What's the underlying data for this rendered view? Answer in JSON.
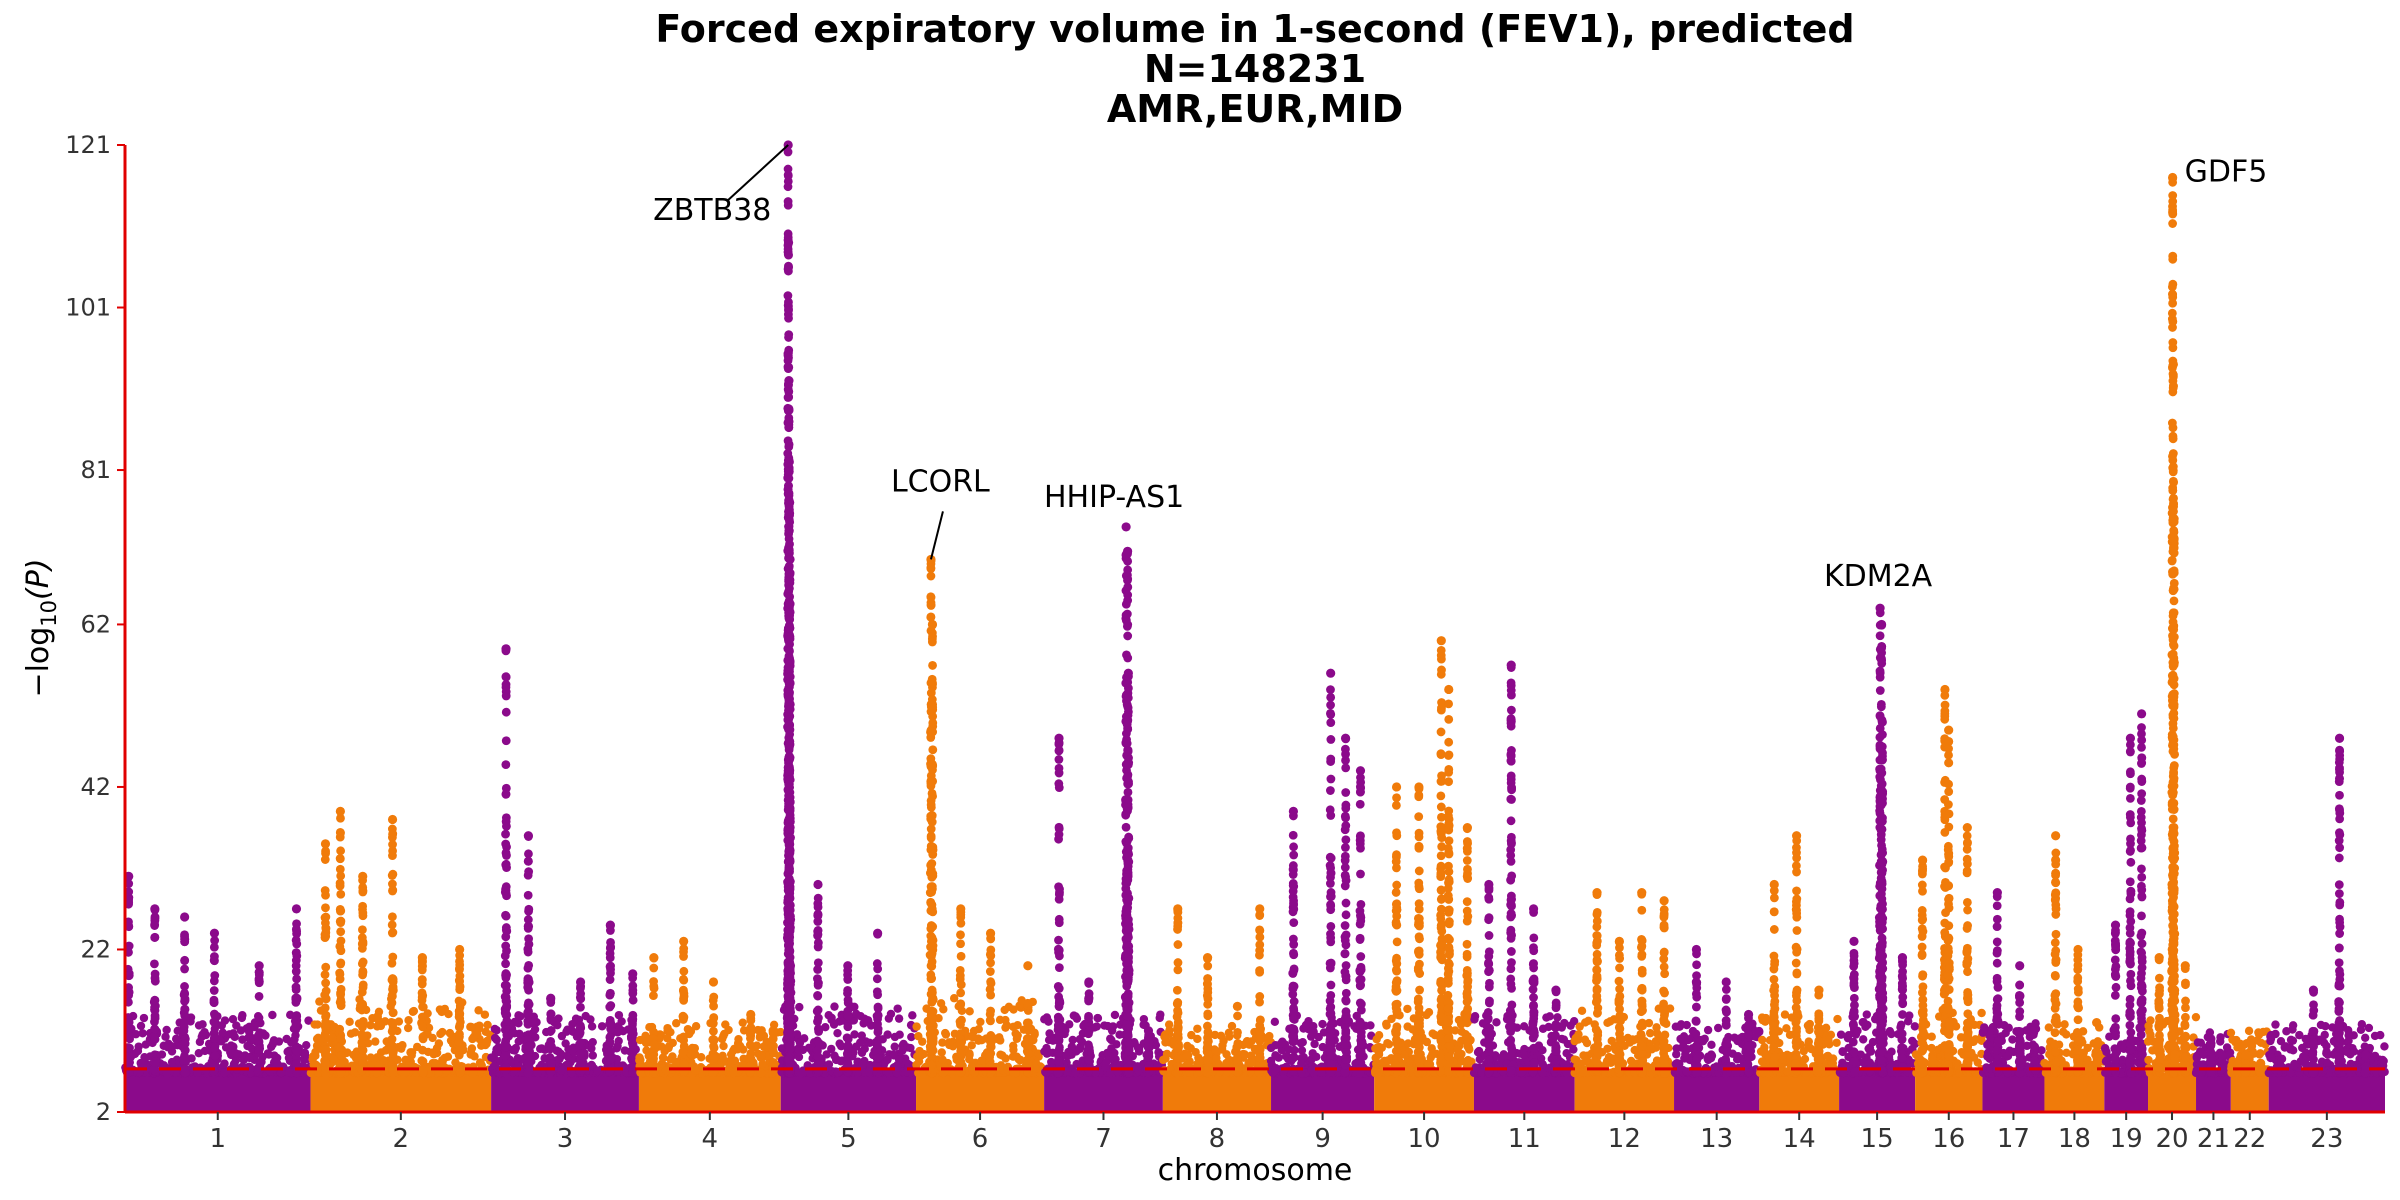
{
  "chart_data": {
    "type": "scatter",
    "title": [
      "Forced expiratory volume in 1-second (FEV1), predicted",
      "N=148231",
      "AMR,EUR,MID"
    ],
    "xlabel": "chromosome",
    "ylabel_main": "−log",
    "ylabel_sub": "10",
    "ylabel_tail": "(P)",
    "ylim": [
      2,
      121
    ],
    "yticks": [
      2,
      22,
      42,
      62,
      81,
      101,
      121
    ],
    "significance_threshold": 7.3,
    "colors": {
      "odd": "#8b0a8b",
      "even": "#f07b0a",
      "axis": "#e00000",
      "threshold": "#e00000"
    },
    "chromosomes": [
      {
        "label": "1",
        "start": 0.0,
        "end": 248.9,
        "baseline": 6.8,
        "background": 10,
        "peaks": [
          {
            "pos": 5,
            "p": 31
          },
          {
            "pos": 40,
            "p": 27
          },
          {
            "pos": 80,
            "p": 26
          },
          {
            "pos": 120,
            "p": 24
          },
          {
            "pos": 180,
            "p": 20
          },
          {
            "pos": 230,
            "p": 27
          }
        ]
      },
      {
        "label": "2",
        "start": 248.9,
        "end": 491.1,
        "baseline": 6.8,
        "background": 12,
        "peaks": [
          {
            "pos": 20,
            "p": 35
          },
          {
            "pos": 40,
            "p": 39
          },
          {
            "pos": 70,
            "p": 31
          },
          {
            "pos": 110,
            "p": 38
          },
          {
            "pos": 150,
            "p": 21
          },
          {
            "pos": 200,
            "p": 22
          }
        ]
      },
      {
        "label": "3",
        "start": 491.1,
        "end": 689.4,
        "baseline": 6.8,
        "background": 10,
        "peaks": [
          {
            "pos": 20,
            "p": 59
          },
          {
            "pos": 50,
            "p": 36
          },
          {
            "pos": 80,
            "p": 16
          },
          {
            "pos": 120,
            "p": 18
          },
          {
            "pos": 160,
            "p": 25
          },
          {
            "pos": 190,
            "p": 19
          }
        ]
      },
      {
        "label": "4",
        "start": 689.4,
        "end": 879.6,
        "baseline": 6.8,
        "background": 9,
        "peaks": [
          {
            "pos": 20,
            "p": 21
          },
          {
            "pos": 60,
            "p": 23
          },
          {
            "pos": 100,
            "p": 18
          },
          {
            "pos": 150,
            "p": 14
          },
          {
            "pos": 180,
            "p": 12
          }
        ]
      },
      {
        "label": "5",
        "start": 879.6,
        "end": 1061.1,
        "baseline": 6.8,
        "background": 11,
        "peaks": [
          {
            "pos": 10,
            "p": 121
          },
          {
            "pos": 10.5,
            "p": 109
          },
          {
            "pos": 11,
            "p": 92
          },
          {
            "pos": 11.5,
            "p": 82
          },
          {
            "pos": 12,
            "p": 77
          },
          {
            "pos": 12.5,
            "p": 70
          },
          {
            "pos": 50,
            "p": 30
          },
          {
            "pos": 90,
            "p": 20
          },
          {
            "pos": 130,
            "p": 24
          }
        ]
      },
      {
        "label": "6",
        "start": 1061.1,
        "end": 1232.9,
        "baseline": 6.8,
        "background": 12,
        "peaks": [
          {
            "pos": 20,
            "p": 70
          },
          {
            "pos": 22,
            "p": 62
          },
          {
            "pos": 60,
            "p": 27
          },
          {
            "pos": 100,
            "p": 24
          },
          {
            "pos": 150,
            "p": 20
          }
        ]
      },
      {
        "label": "7",
        "start": 1232.9,
        "end": 1392.2,
        "baseline": 6.8,
        "background": 10,
        "peaks": [
          {
            "pos": 20,
            "p": 48
          },
          {
            "pos": 60,
            "p": 18
          },
          {
            "pos": 110,
            "p": 74
          },
          {
            "pos": 112,
            "p": 71
          },
          {
            "pos": 113,
            "p": 56
          },
          {
            "pos": 140,
            "p": 12
          }
        ]
      },
      {
        "label": "8",
        "start": 1392.2,
        "end": 1537.3,
        "baseline": 6.8,
        "background": 9,
        "peaks": [
          {
            "pos": 20,
            "p": 27
          },
          {
            "pos": 60,
            "p": 21
          },
          {
            "pos": 100,
            "p": 15
          },
          {
            "pos": 130,
            "p": 27
          }
        ]
      },
      {
        "label": "9",
        "start": 1537.3,
        "end": 1675.7,
        "baseline": 6.8,
        "background": 10,
        "peaks": [
          {
            "pos": 30,
            "p": 39
          },
          {
            "pos": 80,
            "p": 56
          },
          {
            "pos": 100,
            "p": 48
          },
          {
            "pos": 120,
            "p": 44
          }
        ]
      },
      {
        "label": "10",
        "start": 1675.7,
        "end": 1809.5,
        "baseline": 6.8,
        "background": 11,
        "peaks": [
          {
            "pos": 30,
            "p": 42
          },
          {
            "pos": 60,
            "p": 42
          },
          {
            "pos": 90,
            "p": 60
          },
          {
            "pos": 100,
            "p": 54
          },
          {
            "pos": 125,
            "p": 37
          }
        ]
      },
      {
        "label": "11",
        "start": 1809.5,
        "end": 1944.6,
        "baseline": 6.8,
        "background": 10,
        "peaks": [
          {
            "pos": 20,
            "p": 30
          },
          {
            "pos": 50,
            "p": 57
          },
          {
            "pos": 80,
            "p": 27
          },
          {
            "pos": 110,
            "p": 17
          }
        ]
      },
      {
        "label": "12",
        "start": 1944.6,
        "end": 2077.9,
        "baseline": 6.8,
        "background": 11,
        "peaks": [
          {
            "pos": 30,
            "p": 29
          },
          {
            "pos": 60,
            "p": 23
          },
          {
            "pos": 90,
            "p": 29
          },
          {
            "pos": 120,
            "p": 28
          }
        ]
      },
      {
        "label": "13",
        "start": 2077.9,
        "end": 2192.3,
        "baseline": 6.8,
        "background": 9,
        "peaks": [
          {
            "pos": 30,
            "p": 22
          },
          {
            "pos": 70,
            "p": 18
          },
          {
            "pos": 100,
            "p": 14
          }
        ]
      },
      {
        "label": "14",
        "start": 2192.3,
        "end": 2299.3,
        "baseline": 6.8,
        "background": 10,
        "peaks": [
          {
            "pos": 20,
            "p": 30
          },
          {
            "pos": 50,
            "p": 36
          },
          {
            "pos": 80,
            "p": 17
          }
        ]
      },
      {
        "label": "15",
        "start": 2299.3,
        "end": 2401.3,
        "baseline": 6.8,
        "background": 10,
        "peaks": [
          {
            "pos": 20,
            "p": 23
          },
          {
            "pos": 55,
            "p": 64
          },
          {
            "pos": 57,
            "p": 62
          },
          {
            "pos": 58,
            "p": 50
          },
          {
            "pos": 85,
            "p": 21
          }
        ]
      },
      {
        "label": "16",
        "start": 2401.3,
        "end": 2491.6,
        "baseline": 6.8,
        "background": 11,
        "peaks": [
          {
            "pos": 10,
            "p": 33
          },
          {
            "pos": 40,
            "p": 54
          },
          {
            "pos": 45,
            "p": 49
          },
          {
            "pos": 70,
            "p": 37
          }
        ]
      },
      {
        "label": "17",
        "start": 2491.6,
        "end": 2574.8,
        "baseline": 6.8,
        "background": 9,
        "peaks": [
          {
            "pos": 20,
            "p": 29
          },
          {
            "pos": 50,
            "p": 20
          },
          {
            "pos": 70,
            "p": 10
          }
        ]
      },
      {
        "label": "18",
        "start": 2574.8,
        "end": 2655.1,
        "baseline": 6.8,
        "background": 9,
        "peaks": [
          {
            "pos": 15,
            "p": 36
          },
          {
            "pos": 45,
            "p": 22
          },
          {
            "pos": 70,
            "p": 13
          }
        ]
      },
      {
        "label": "19",
        "start": 2655.1,
        "end": 2713.7,
        "baseline": 6.8,
        "background": 9,
        "peaks": [
          {
            "pos": 15,
            "p": 25
          },
          {
            "pos": 35,
            "p": 48
          },
          {
            "pos": 50,
            "p": 51
          }
        ]
      },
      {
        "label": "20",
        "start": 2713.7,
        "end": 2778.1,
        "baseline": 6.8,
        "background": 10,
        "peaks": [
          {
            "pos": 15,
            "p": 21
          },
          {
            "pos": 33,
            "p": 117
          },
          {
            "pos": 34,
            "p": 94
          },
          {
            "pos": 35,
            "p": 75
          },
          {
            "pos": 50,
            "p": 20
          }
        ]
      },
      {
        "label": "21",
        "start": 2778.1,
        "end": 2824.8,
        "baseline": 6.8,
        "background": 8,
        "peaks": [
          {
            "pos": 20,
            "p": 11
          },
          {
            "pos": 35,
            "p": 9
          }
        ]
      },
      {
        "label": "22",
        "start": 2824.8,
        "end": 2875.6,
        "baseline": 6.8,
        "background": 8,
        "peaks": [
          {
            "pos": 20,
            "p": 9
          },
          {
            "pos": 40,
            "p": 8
          }
        ]
      },
      {
        "label": "23",
        "start": 2875.6,
        "end": 3031.6,
        "baseline": 6.8,
        "background": 9,
        "peaks": [
          {
            "pos": 60,
            "p": 17
          },
          {
            "pos": 95,
            "p": 48
          },
          {
            "pos": 130,
            "p": 9
          }
        ]
      }
    ],
    "annotations": [
      {
        "gene": "ZBTB38",
        "chrom": "5",
        "pos": 10,
        "p": 121
      },
      {
        "gene": "LCORL",
        "chrom": "6",
        "pos": 20,
        "p": 70
      },
      {
        "gene": "HHIP-AS1",
        "chrom": "7",
        "pos": 110,
        "p": 74
      },
      {
        "gene": "KDM2A",
        "chrom": "15",
        "pos": 55,
        "p": 64
      },
      {
        "gene": "GDF5",
        "chrom": "20",
        "pos": 33,
        "p": 117
      }
    ]
  }
}
